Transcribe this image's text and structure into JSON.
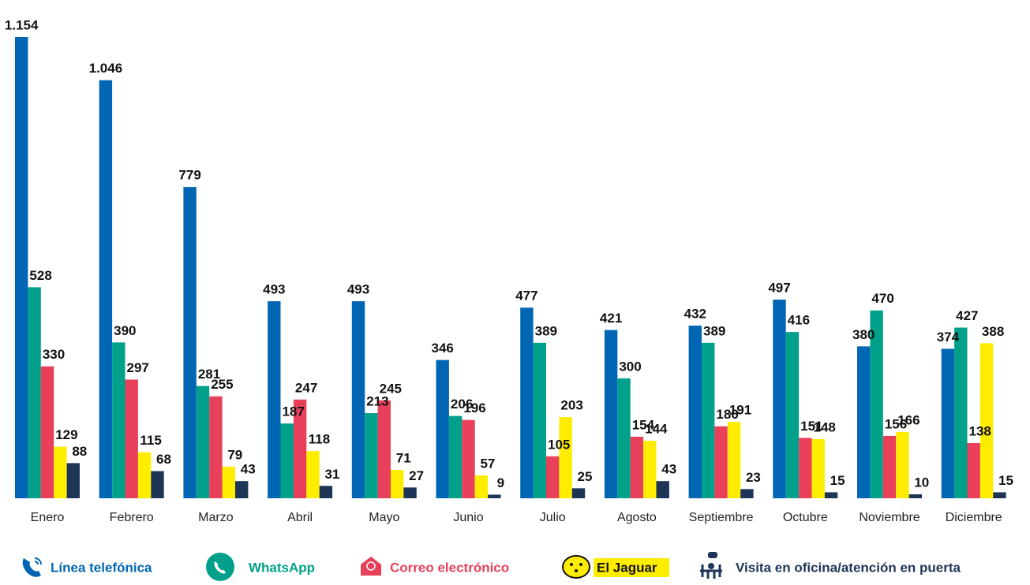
{
  "chart_data": {
    "type": "bar",
    "categories": [
      "Enero",
      "Febrero",
      "Marzo",
      "Abril",
      "Mayo",
      "Junio",
      "Julio",
      "Agosto",
      "Septiembre",
      "Octubre",
      "Noviembre",
      "Diciembre"
    ],
    "series": [
      {
        "name": "Línea telefónica",
        "color": "#0066b3",
        "values": [
          1154,
          1046,
          779,
          493,
          493,
          346,
          477,
          421,
          432,
          497,
          380,
          374
        ],
        "value_labels": [
          "1.154",
          "1.046",
          "779",
          "493",
          "493",
          "346",
          "477",
          "421",
          "432",
          "497",
          "380",
          "374"
        ]
      },
      {
        "name": "WhatsApp",
        "color": "#00a08a",
        "values": [
          528,
          390,
          281,
          187,
          213,
          206,
          389,
          300,
          389,
          416,
          470,
          427
        ]
      },
      {
        "name": "Correo electrónico",
        "color": "#e8405a",
        "values": [
          330,
          297,
          255,
          247,
          245,
          196,
          105,
          154,
          180,
          151,
          156,
          138
        ]
      },
      {
        "name": "El Jaguar",
        "color": "#ffed00",
        "values": [
          129,
          115,
          79,
          118,
          71,
          57,
          203,
          144,
          191,
          148,
          166,
          388
        ]
      },
      {
        "name": "Visita en oficina/atención en puerta",
        "color": "#1e3557",
        "values": [
          88,
          68,
          43,
          31,
          27,
          9,
          25,
          43,
          23,
          15,
          10,
          15
        ]
      }
    ],
    "legend": "bottom"
  }
}
